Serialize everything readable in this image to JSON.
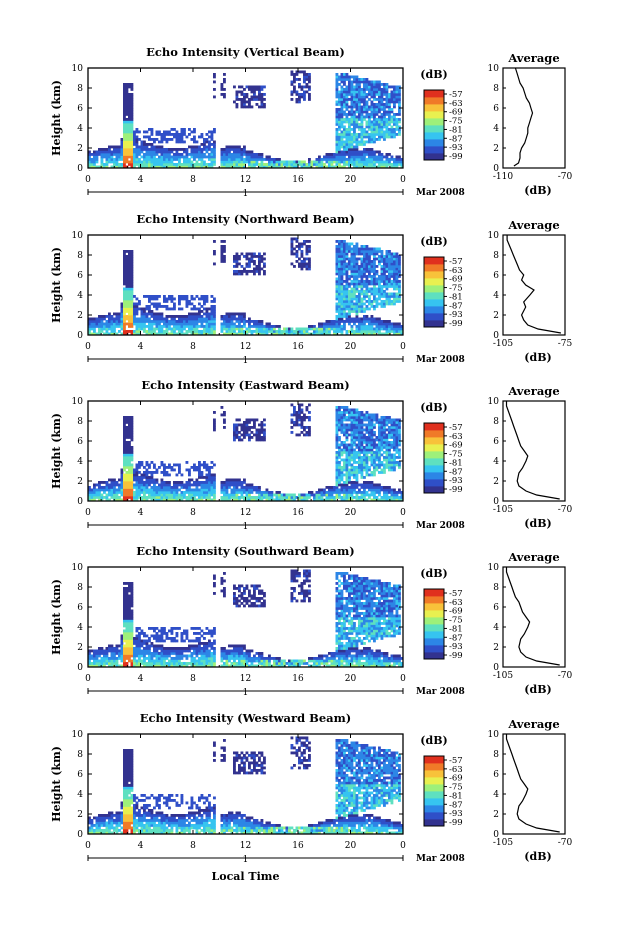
{
  "figure": {
    "bottom_label": "Local Time",
    "date_label": "Mar 2008",
    "day_label": "1"
  },
  "chart_data": [
    {
      "type": "heatmap",
      "title": "Echo Intensity (Vertical Beam)",
      "xlabel": "",
      "ylabel": "Height (km)",
      "xlim": [
        0,
        24
      ],
      "ylim": [
        0,
        10
      ],
      "xticks": [
        "0",
        "4",
        "8",
        "12",
        "16",
        "20",
        "0"
      ],
      "yticks": [
        "0",
        "2",
        "4",
        "6",
        "8",
        "10"
      ],
      "colorbar": {
        "unit": "(dB)",
        "range": [
          -103,
          -57
        ],
        "ticks": [
          "-57",
          "-63",
          "-69",
          "-75",
          "-81",
          "-87",
          "-93",
          "-99"
        ]
      },
      "average_profile": {
        "title": "Average",
        "xlabel": "(dB)",
        "xlim": [
          -110,
          -70
        ],
        "xticks": [
          "-110",
          "-70"
        ],
        "x": [
          -103,
          -100,
          -99,
          -99,
          -98,
          -96,
          -95,
          -94,
          -94,
          -93,
          -92,
          -91,
          -92,
          -93,
          -95,
          -96,
          -97,
          -99,
          -100,
          -101,
          -102,
          -102
        ],
        "y": [
          0.2,
          0.5,
          1.0,
          1.5,
          2.0,
          2.5,
          3.0,
          3.5,
          4.0,
          4.5,
          5.0,
          5.5,
          6.0,
          6.5,
          7.0,
          7.5,
          8.0,
          8.5,
          9.0,
          9.5,
          10.0,
          10.0
        ]
      }
    },
    {
      "type": "heatmap",
      "title": "Echo Intensity (Northward Beam)",
      "xlabel": "",
      "ylabel": "Height (km)",
      "xlim": [
        0,
        24
      ],
      "ylim": [
        0,
        10
      ],
      "xticks": [
        "0",
        "4",
        "8",
        "12",
        "16",
        "20",
        "0"
      ],
      "yticks": [
        "0",
        "2",
        "4",
        "6",
        "8",
        "10"
      ],
      "colorbar": {
        "unit": "(dB)",
        "range": [
          -103,
          -57
        ],
        "ticks": [
          "-57",
          "-63",
          "-69",
          "-75",
          "-81",
          "-87",
          "-93",
          "-99"
        ]
      },
      "average_profile": {
        "title": "Average",
        "xlabel": "(dB)",
        "xlim": [
          -105,
          -75
        ],
        "xticks": [
          "-105",
          "-75"
        ],
        "x": [
          -77,
          -88,
          -93,
          -95,
          -96,
          -94,
          -95,
          -92,
          -90,
          -94,
          -96,
          -95,
          -97,
          -98,
          -99,
          -100,
          -101,
          -102,
          -103,
          -103
        ],
        "y": [
          0.2,
          0.6,
          1.0,
          1.5,
          2.0,
          2.8,
          3.3,
          4.0,
          4.5,
          5.0,
          5.5,
          6.0,
          6.5,
          7.0,
          7.5,
          8.0,
          8.5,
          9.0,
          9.5,
          10.0
        ]
      }
    },
    {
      "type": "heatmap",
      "title": "Echo Intensity (Eastward Beam)",
      "xlabel": "",
      "ylabel": "Height (km)",
      "xlim": [
        0,
        24
      ],
      "ylim": [
        0,
        10
      ],
      "xticks": [
        "0",
        "4",
        "8",
        "12",
        "16",
        "20",
        "0"
      ],
      "yticks": [
        "0",
        "2",
        "4",
        "6",
        "8",
        "10"
      ],
      "colorbar": {
        "unit": "(dB)",
        "range": [
          -103,
          -57
        ],
        "ticks": [
          "-57",
          "-63",
          "-69",
          "-75",
          "-81",
          "-87",
          "-93",
          "-99"
        ]
      },
      "average_profile": {
        "title": "Average",
        "xlabel": "(dB)",
        "xlim": [
          -105,
          -70
        ],
        "xticks": [
          "-105",
          "-70"
        ],
        "x": [
          -73,
          -86,
          -92,
          -96,
          -97,
          -96,
          -94,
          -92,
          -91,
          -93,
          -95,
          -96,
          -97,
          -98,
          -99,
          -100,
          -101,
          -102,
          -103,
          -103
        ],
        "y": [
          0.2,
          0.6,
          1.0,
          1.5,
          2.0,
          2.8,
          3.3,
          4.0,
          4.5,
          5.0,
          5.5,
          6.0,
          6.5,
          7.0,
          7.5,
          8.0,
          8.5,
          9.0,
          9.5,
          10.0
        ]
      }
    },
    {
      "type": "heatmap",
      "title": "Echo Intensity (Southward Beam)",
      "xlabel": "",
      "ylabel": "Height (km)",
      "xlim": [
        0,
        24
      ],
      "ylim": [
        0,
        10
      ],
      "xticks": [
        "0",
        "4",
        "8",
        "12",
        "16",
        "20",
        "0"
      ],
      "yticks": [
        "0",
        "2",
        "4",
        "6",
        "8",
        "10"
      ],
      "colorbar": {
        "unit": "(dB)",
        "range": [
          -103,
          -57
        ],
        "ticks": [
          "-57",
          "-63",
          "-69",
          "-75",
          "-81",
          "-87",
          "-93",
          "-99"
        ]
      },
      "average_profile": {
        "title": "Average",
        "xlabel": "(dB)",
        "xlim": [
          -105,
          -70
        ],
        "xticks": [
          "-105",
          "-70"
        ],
        "x": [
          -73,
          -86,
          -92,
          -95,
          -96,
          -95,
          -93,
          -91,
          -90,
          -92,
          -94,
          -95,
          -96,
          -98,
          -99,
          -100,
          -101,
          -102,
          -103,
          -103
        ],
        "y": [
          0.2,
          0.6,
          1.0,
          1.5,
          2.0,
          2.8,
          3.3,
          4.0,
          4.5,
          5.0,
          5.5,
          6.0,
          6.5,
          7.0,
          7.5,
          8.0,
          8.5,
          9.0,
          9.5,
          10.0
        ]
      }
    },
    {
      "type": "heatmap",
      "title": "Echo Intensity (Westward Beam)",
      "xlabel": "Local Time",
      "ylabel": "Height (km)",
      "xlim": [
        0,
        24
      ],
      "ylim": [
        0,
        10
      ],
      "xticks": [
        "0",
        "4",
        "8",
        "12",
        "16",
        "20",
        "0"
      ],
      "yticks": [
        "0",
        "2",
        "4",
        "6",
        "8",
        "10"
      ],
      "colorbar": {
        "unit": "(dB)",
        "range": [
          -103,
          -57
        ],
        "ticks": [
          "-57",
          "-63",
          "-69",
          "-75",
          "-81",
          "-87",
          "-93",
          "-99"
        ]
      },
      "average_profile": {
        "title": "Average",
        "xlabel": "(dB)",
        "xlim": [
          -105,
          -70
        ],
        "xticks": [
          "-105",
          "-70"
        ],
        "x": [
          -73,
          -86,
          -92,
          -96,
          -97,
          -96,
          -94,
          -92,
          -91,
          -93,
          -95,
          -96,
          -97,
          -98,
          -99,
          -100,
          -101,
          -102,
          -103,
          -103
        ],
        "y": [
          0.2,
          0.6,
          1.0,
          1.5,
          2.0,
          2.8,
          3.3,
          4.0,
          4.5,
          5.0,
          5.5,
          6.0,
          6.5,
          7.0,
          7.5,
          8.0,
          8.5,
          9.0,
          9.5,
          10.0
        ]
      }
    }
  ],
  "colors": {
    "colormap": [
      "#32328f",
      "#2f4fc8",
      "#2c86e6",
      "#36c4f0",
      "#5ee0c0",
      "#9ef07a",
      "#e8f050",
      "#f8c23a",
      "#f07a28",
      "#e0301e"
    ],
    "cloud_high": [
      "#2b2f86",
      "#3a58c6",
      "#6fa6e8"
    ],
    "axis": "#000000"
  }
}
